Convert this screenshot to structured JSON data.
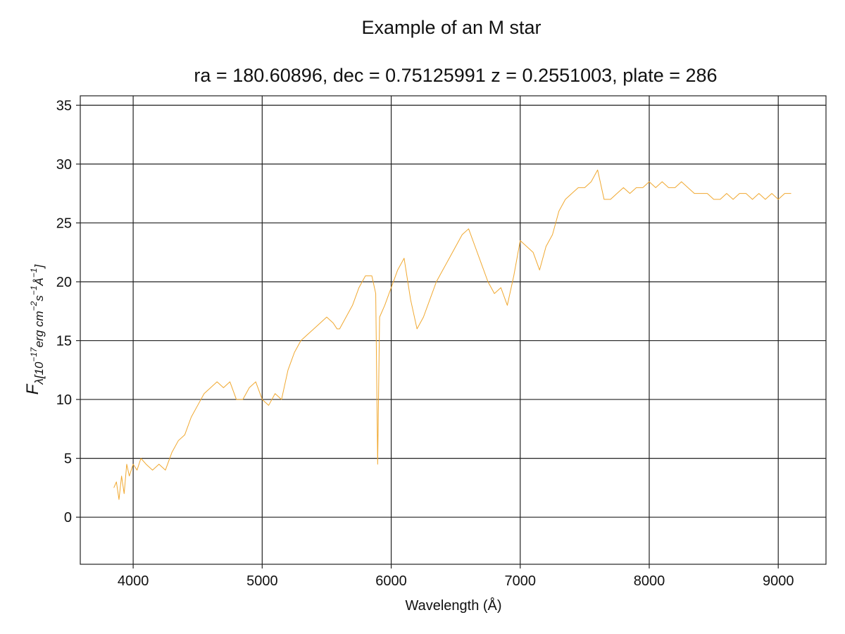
{
  "chart_data": {
    "type": "line",
    "title": "Example of an M star",
    "subtitle": "ra = 180.60896, dec = 0.75125991 z = 0.2551003, plate = 286",
    "xlabel": "Wavelength (Å)",
    "ylabel_main": "F",
    "ylabel_sub": "λ[10",
    "ylabel_exp1": "−17",
    "ylabel_mid": "erg cm",
    "ylabel_exp2": "−2",
    "ylabel_s": "s",
    "ylabel_exp3": "−1",
    "ylabel_ang": "Å",
    "ylabel_exp4": "−1",
    "ylabel_end": "]",
    "xlim": [
      3590,
      9370
    ],
    "ylim": [
      -4,
      35.8
    ],
    "xticks": [
      4000,
      5000,
      6000,
      7000,
      8000,
      9000
    ],
    "yticks": [
      0,
      5,
      10,
      15,
      20,
      25,
      30,
      35
    ],
    "grid": true,
    "line_color": "#f0a830",
    "series": [
      {
        "x": [
          3850,
          3870,
          3890,
          3910,
          3930,
          3950,
          3970,
          4000,
          4030,
          4060,
          4100,
          4150,
          4200,
          4250,
          4300,
          4350,
          4400,
          4450,
          4500,
          4550,
          4600,
          4650,
          4700,
          4750,
          4800,
          4850,
          4900,
          4950,
          5000,
          5050,
          5100,
          5150,
          5200,
          5250,
          5300,
          5350,
          5400,
          5450,
          5500,
          5550,
          5580,
          5600,
          5650,
          5700,
          5750,
          5800,
          5850,
          5880,
          5895,
          5910,
          5950,
          6000,
          6050,
          6100,
          6150,
          6200,
          6250,
          6300,
          6350,
          6400,
          6450,
          6500,
          6550,
          6600,
          6650,
          6700,
          6750,
          6800,
          6850,
          6900,
          6950,
          7000,
          7050,
          7100,
          7150,
          7200,
          7250,
          7300,
          7350,
          7400,
          7450,
          7500,
          7550,
          7600,
          7650,
          7700,
          7750,
          7800,
          7850,
          7900,
          7950,
          8000,
          8050,
          8100,
          8150,
          8200,
          8250,
          8300,
          8350,
          8400,
          8450,
          8500,
          8550,
          8600,
          8650,
          8700,
          8750,
          8800,
          8850,
          8900,
          8950,
          9000,
          9050,
          9100
        ],
        "values": [
          2.5,
          3.0,
          1.5,
          3.5,
          2.0,
          4.5,
          3.5,
          4.5,
          4.0,
          5.0,
          4.5,
          4.0,
          4.5,
          4.0,
          5.5,
          6.5,
          7.0,
          8.5,
          9.5,
          10.5,
          11.0,
          11.5,
          11.0,
          11.5,
          10.0,
          10.0,
          11.0,
          11.5,
          10.0,
          9.5,
          10.5,
          10.0,
          12.5,
          14.0,
          15.0,
          15.5,
          16.0,
          16.5,
          17.0,
          16.5,
          16.0,
          16.0,
          17.0,
          18.0,
          19.5,
          20.5,
          20.5,
          19.0,
          4.5,
          17.0,
          18.0,
          19.5,
          21.0,
          22.0,
          18.5,
          16.0,
          17.0,
          18.5,
          20.0,
          21.0,
          22.0,
          23.0,
          24.0,
          24.5,
          23.0,
          21.5,
          20.0,
          19.0,
          19.5,
          18.0,
          20.5,
          23.5,
          23.0,
          22.5,
          21.0,
          23.0,
          24.0,
          26.0,
          27.0,
          27.5,
          28.0,
          28.0,
          28.5,
          29.5,
          27.0,
          27.0,
          27.5,
          28.0,
          27.5,
          28.0,
          28.0,
          28.5,
          28.0,
          28.5,
          28.0,
          28.0,
          28.5,
          28.0,
          27.5,
          27.5,
          27.5,
          27.0,
          27.0,
          27.5,
          27.0,
          27.5,
          27.5,
          27.0,
          27.5,
          27.0,
          27.5,
          27.0,
          27.5,
          27.5
        ]
      }
    ]
  }
}
